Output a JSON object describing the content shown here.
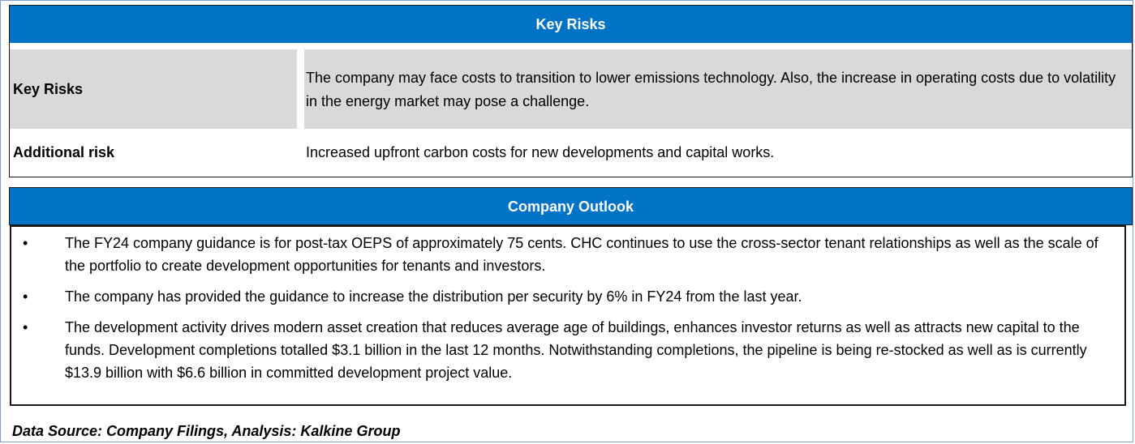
{
  "key_risks": {
    "header": "Key Risks",
    "rows": [
      {
        "label": "Key Risks",
        "text": "The company may face costs to transition to lower emissions technology. Also, the increase in operating costs due to volatility in the energy market may pose a challenge."
      },
      {
        "label": "Additional risk",
        "text": "Increased upfront carbon costs for new developments and capital works."
      }
    ]
  },
  "company_outlook": {
    "header": "Company Outlook",
    "bullet_symbol": "•",
    "items": [
      "The FY24 company guidance is for post-tax OEPS of approximately 75 cents. CHC continues to use the cross-sector tenant relationships as well as the scale of the portfolio to create development opportunities for tenants and investors.",
      "The company has provided the guidance to increase the distribution per security by 6% in FY24 from the last year.",
      "The development activity drives modern asset creation that reduces average age of buildings, enhances investor returns as well as attracts new capital to the funds. Development completions totalled $3.1 billion in the last 12 months. Notwithstanding completions, the pipeline is being re-stocked as well as is currently $13.9 billion with $6.6 billion in committed development project value."
    ]
  },
  "footer": {
    "source": "Data Source: Company Filings, Analysis: Kalkine Group"
  },
  "colors": {
    "header_bg": "#0073c6",
    "header_text": "#ffffff",
    "row_shade": "#d9d9d9"
  }
}
